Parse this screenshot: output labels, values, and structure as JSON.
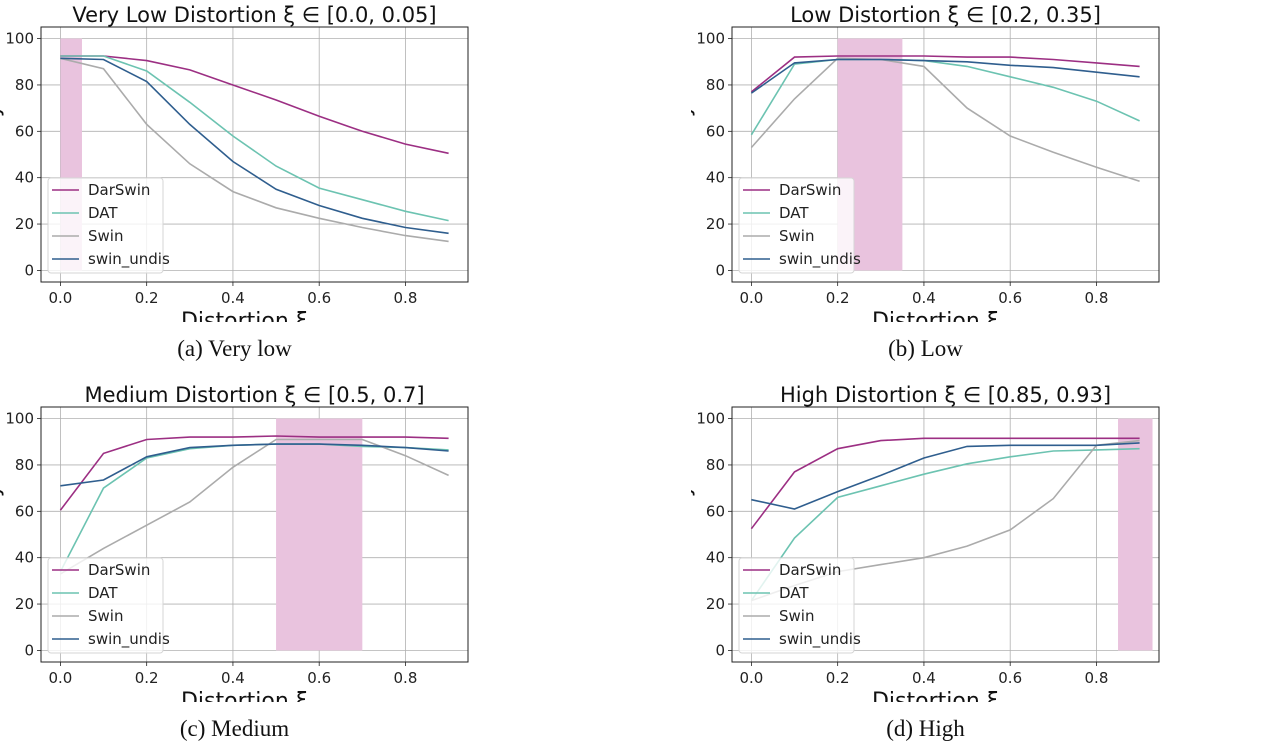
{
  "colors": {
    "DarSwin": "#9c2f83",
    "DAT": "#6cc3b1",
    "Swin": "#ababab",
    "swin_undis": "#2f5e8e",
    "shade": "#e9c3de"
  },
  "chart_data": [
    {
      "type": "line",
      "title": "Very Low Distortion ξ ∈ [0.0, 0.05]",
      "caption": "(a) Very low",
      "xlabel": "Distortion ξ",
      "ylabel": "Accuracy",
      "x": [
        0.0,
        0.1,
        0.2,
        0.3,
        0.4,
        0.5,
        0.6,
        0.7,
        0.8,
        0.9
      ],
      "xlim": [
        -0.045,
        0.945
      ],
      "ylim": [
        -5,
        105
      ],
      "xticks": [
        "0.0",
        "0.2",
        "0.4",
        "0.6",
        "0.8"
      ],
      "yticks": [
        "0",
        "20",
        "40",
        "60",
        "80",
        "100"
      ],
      "grid": true,
      "legend": "lower-left",
      "shaded_range": [
        0.0,
        0.05
      ],
      "series": [
        {
          "name": "DarSwin",
          "values": [
            92.5,
            92.5,
            90.5,
            86.5,
            80,
            73.5,
            66.5,
            60,
            54.5,
            50.5
          ]
        },
        {
          "name": "DAT",
          "values": [
            92.5,
            92.5,
            86,
            72.5,
            58,
            45,
            35.5,
            30.5,
            25.5,
            21.5
          ]
        },
        {
          "name": "Swin",
          "values": [
            91.5,
            87,
            63,
            46,
            34,
            27,
            22.5,
            18.5,
            15,
            12.5
          ]
        },
        {
          "name": "swin_undis",
          "values": [
            91.5,
            91,
            81.5,
            63,
            47,
            35,
            28,
            22.5,
            18.5,
            16
          ]
        }
      ]
    },
    {
      "type": "line",
      "title": "Low Distortion ξ ∈ [0.2, 0.35]",
      "caption": "(b) Low",
      "xlabel": "Distortion ξ",
      "ylabel": "Accuracy",
      "x": [
        0.0,
        0.1,
        0.2,
        0.3,
        0.4,
        0.5,
        0.6,
        0.7,
        0.8,
        0.9
      ],
      "xlim": [
        -0.045,
        0.945
      ],
      "ylim": [
        -5,
        105
      ],
      "xticks": [
        "0.0",
        "0.2",
        "0.4",
        "0.6",
        "0.8"
      ],
      "yticks": [
        "0",
        "20",
        "40",
        "60",
        "80",
        "100"
      ],
      "grid": true,
      "legend": "lower-left",
      "shaded_range": [
        0.2,
        0.35
      ],
      "series": [
        {
          "name": "DarSwin",
          "values": [
            77,
            92,
            92.5,
            92.5,
            92.5,
            92,
            92,
            91,
            89.5,
            88
          ]
        },
        {
          "name": "DAT",
          "values": [
            58.5,
            89,
            91,
            91,
            90.5,
            88,
            83.5,
            79,
            73,
            64.5
          ]
        },
        {
          "name": "Swin",
          "values": [
            53,
            74,
            91.5,
            91,
            88,
            70,
            58,
            51,
            44.5,
            38.5
          ]
        },
        {
          "name": "swin_undis",
          "values": [
            76.5,
            89.5,
            91,
            91,
            90.5,
            90,
            88.5,
            87.5,
            85.5,
            83.5
          ]
        }
      ]
    },
    {
      "type": "line",
      "title": "Medium Distortion ξ ∈ [0.5, 0.7]",
      "caption": "(c) Medium",
      "xlabel": "Distortion ξ",
      "ylabel": "Accuracy",
      "x": [
        0.0,
        0.1,
        0.2,
        0.3,
        0.4,
        0.5,
        0.6,
        0.7,
        0.8,
        0.9
      ],
      "xlim": [
        -0.045,
        0.945
      ],
      "ylim": [
        -5,
        105
      ],
      "xticks": [
        "0.0",
        "0.2",
        "0.4",
        "0.6",
        "0.8"
      ],
      "yticks": [
        "0",
        "20",
        "40",
        "60",
        "80",
        "100"
      ],
      "grid": true,
      "legend": "lower-left",
      "shaded_range": [
        0.5,
        0.7
      ],
      "series": [
        {
          "name": "DarSwin",
          "values": [
            60.5,
            85,
            91,
            92,
            92,
            92.5,
            92,
            92,
            92,
            91.5
          ]
        },
        {
          "name": "DAT",
          "values": [
            34,
            70,
            83,
            87,
            88.5,
            89,
            89,
            88,
            87.5,
            86.5
          ]
        },
        {
          "name": "Swin",
          "values": [
            33,
            44,
            54,
            64,
            79,
            91,
            91,
            91,
            84,
            75.5
          ]
        },
        {
          "name": "swin_undis",
          "values": [
            71,
            73.5,
            83.5,
            87.5,
            88.5,
            89,
            89,
            88.5,
            87.5,
            86
          ]
        }
      ]
    },
    {
      "type": "line",
      "title": "High Distortion ξ ∈ [0.85, 0.93]",
      "caption": "(d) High",
      "xlabel": "Distortion ξ",
      "ylabel": "Accuracy",
      "x": [
        0.0,
        0.1,
        0.2,
        0.3,
        0.4,
        0.5,
        0.6,
        0.7,
        0.8,
        0.9
      ],
      "xlim": [
        -0.045,
        0.945
      ],
      "ylim": [
        -5,
        105
      ],
      "xticks": [
        "0.0",
        "0.2",
        "0.4",
        "0.6",
        "0.8"
      ],
      "yticks": [
        "0",
        "20",
        "40",
        "60",
        "80",
        "100"
      ],
      "grid": true,
      "legend": "lower-left",
      "shaded_range": [
        0.85,
        0.93
      ],
      "series": [
        {
          "name": "DarSwin",
          "values": [
            52.5,
            77,
            87,
            90.5,
            91.5,
            91.5,
            91.5,
            91.5,
            91.5,
            91.5
          ]
        },
        {
          "name": "DAT",
          "values": [
            21.5,
            48.5,
            66,
            71,
            76,
            80.5,
            83.5,
            86,
            86.5,
            87
          ]
        },
        {
          "name": "Swin",
          "values": [
            21.5,
            28,
            34,
            37,
            40,
            45,
            52,
            65.5,
            88.5,
            90.5
          ]
        },
        {
          "name": "swin_undis",
          "values": [
            65,
            61,
            68.5,
            75.5,
            83,
            88,
            88.5,
            88.5,
            88.5,
            89.5
          ]
        }
      ]
    }
  ]
}
